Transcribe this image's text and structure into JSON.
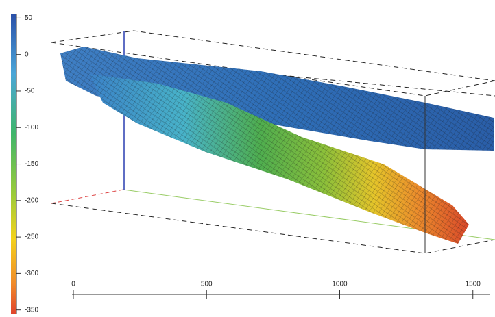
{
  "colorbar": {
    "lim": [
      -355,
      56
    ],
    "ticks": [
      50,
      0,
      -50,
      -100,
      -150,
      -200,
      -250,
      -300,
      -350
    ]
  },
  "x_axis": {
    "lim": [
      0,
      1565
    ],
    "ticks": [
      0,
      500,
      1000,
      1500
    ]
  }
}
